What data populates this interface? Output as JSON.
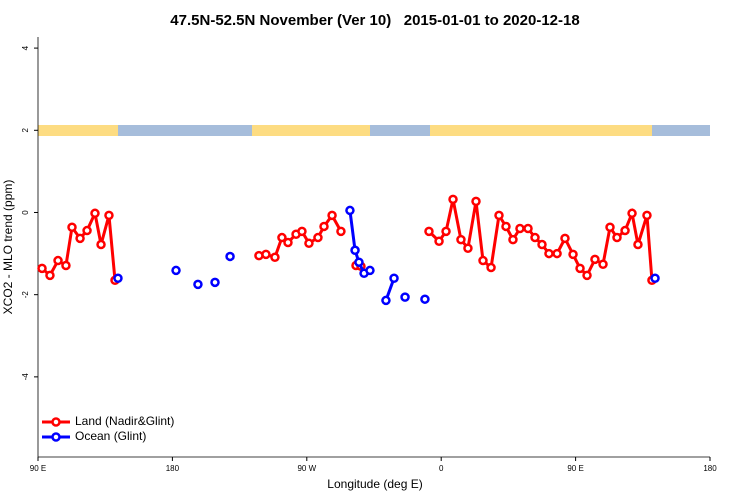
{
  "chart_data": {
    "type": "line",
    "title": "47.5N-52.5N November (Ver 10)   2015-01-01 to 2020-12-18",
    "x_label": "Longitude (deg E)",
    "y_label": "XCO2 - MLO trend (ppm)",
    "xlim": [
      0,
      5
    ],
    "ylim": [
      -5.95,
      4.27
    ],
    "xticks": [
      {
        "value": 0,
        "label": "90 E"
      },
      {
        "value": 1,
        "label": "180"
      },
      {
        "value": 2,
        "label": "90 W"
      },
      {
        "value": 3,
        "label": "0"
      },
      {
        "value": 4,
        "label": "90 E"
      },
      {
        "value": 5,
        "label": "180"
      }
    ],
    "yticks": [
      -4,
      -2,
      0,
      2,
      4
    ],
    "legend": "bottom-left",
    "series": [
      {
        "name": "Land (Nadir&Glint)",
        "color": "#ff0000",
        "x": [
          0.03,
          0.089,
          0.149,
          0.208,
          0.253,
          0.313,
          0.365,
          0.424,
          0.469,
          0.528,
          0.573,
          null,
          1.644,
          1.696,
          1.763,
          1.815,
          1.86,
          1.92,
          1.964,
          2.016,
          2.083,
          2.128,
          2.188,
          2.254,
          null,
          2.366,
          2.403,
          null,
          2.909,
          2.984,
          3.036,
          3.088,
          3.147,
          3.199,
          3.259,
          3.311,
          3.371,
          3.43,
          3.482,
          3.534,
          3.586,
          3.646,
          3.698,
          3.75,
          3.802,
          3.862,
          3.921,
          3.981,
          4.033,
          4.085,
          4.144,
          4.204,
          4.256,
          4.308,
          4.368,
          4.42,
          4.464,
          4.531,
          4.568
        ],
        "values": [
          -1.36,
          -1.53,
          -1.17,
          -1.29,
          -0.36,
          -0.63,
          -0.44,
          -0.02,
          -0.78,
          -0.07,
          -1.65,
          null,
          -1.05,
          -1.02,
          -1.09,
          -0.61,
          -0.73,
          -0.53,
          -0.46,
          -0.75,
          -0.61,
          -0.34,
          -0.07,
          -0.46,
          null,
          -1.29,
          -1.31,
          null,
          -0.46,
          -0.7,
          -0.46,
          0.32,
          -0.66,
          -0.87,
          0.27,
          -1.17,
          -1.34,
          -0.07,
          -0.34,
          -0.66,
          -0.39,
          -0.39,
          -0.61,
          -0.78,
          -1.0,
          -1.0,
          -0.63,
          -1.02,
          -1.36,
          -1.53,
          -1.14,
          -1.26,
          -0.36,
          -0.61,
          -0.44,
          -0.02,
          -0.78,
          -0.07,
          -1.65
        ]
      },
      {
        "name": "Ocean (Glint)",
        "color": "#0000ff",
        "x": [
          0.595,
          null,
          1.027,
          null,
          1.19,
          null,
          1.317,
          null,
          1.429,
          null,
          2.321,
          2.359,
          2.388,
          2.426,
          2.47,
          null,
          2.589,
          2.649,
          null,
          2.731,
          null,
          2.879,
          null,
          4.591
        ],
        "values": [
          -1.6,
          null,
          -1.41,
          null,
          -1.75,
          null,
          -1.7,
          null,
          -1.07,
          null,
          0.05,
          -0.92,
          -1.21,
          -1.48,
          -1.41,
          null,
          -2.14,
          -1.6,
          null,
          -2.06,
          null,
          -2.11,
          null,
          -1.6
        ]
      }
    ]
  }
}
